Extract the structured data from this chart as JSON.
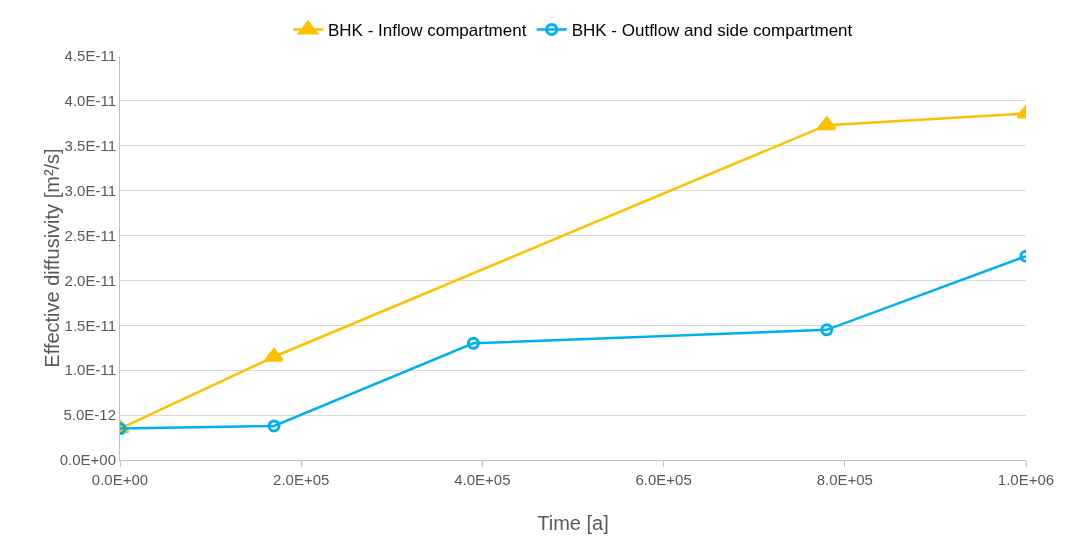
{
  "chart_data": {
    "type": "line",
    "xlabel": "Time [a]",
    "ylabel": "Effective diffusivity [m²/s]",
    "xlim": [
      0,
      1000000
    ],
    "ylim": [
      0,
      4.5e-11
    ],
    "xticks": [
      {
        "value": 0,
        "label": "0.0E+00"
      },
      {
        "value": 200000,
        "label": "2.0E+05"
      },
      {
        "value": 400000,
        "label": "4.0E+05"
      },
      {
        "value": 600000,
        "label": "6.0E+05"
      },
      {
        "value": 800000,
        "label": "8.0E+05"
      },
      {
        "value": 1000000,
        "label": "1.0E+06"
      }
    ],
    "yticks": [
      {
        "value": 0,
        "label": "0.0E+00"
      },
      {
        "value": 5e-12,
        "label": "5.0E-12"
      },
      {
        "value": 1e-11,
        "label": "1.0E-11"
      },
      {
        "value": 1.5e-11,
        "label": "1.5E-11"
      },
      {
        "value": 2e-11,
        "label": "2.0E-11"
      },
      {
        "value": 2.5e-11,
        "label": "2.5E-11"
      },
      {
        "value": 3e-11,
        "label": "3.0E-11"
      },
      {
        "value": 3.5e-11,
        "label": "3.5E-11"
      },
      {
        "value": 4e-11,
        "label": "4.0E-11"
      },
      {
        "value": 4.5e-11,
        "label": "4.5E-11"
      }
    ],
    "grid": "y",
    "legend": "top",
    "line_style": "solid",
    "series": [
      {
        "name": "BHK - Inflow compartment",
        "color": "#ffc000",
        "marker": "triangle",
        "x": [
          0,
          170000,
          780000,
          1000000
        ],
        "values": [
          3.5e-12,
          1.15e-11,
          3.73e-11,
          3.86e-11
        ]
      },
      {
        "name": "BHK - Outflow and side compartment",
        "color": "#00b0f0",
        "marker": "circle",
        "x": [
          0,
          170000,
          390000,
          780000,
          1000000
        ],
        "values": [
          3.5e-12,
          3.8e-12,
          1.3e-11,
          1.45e-11,
          2.27e-11
        ]
      }
    ]
  }
}
